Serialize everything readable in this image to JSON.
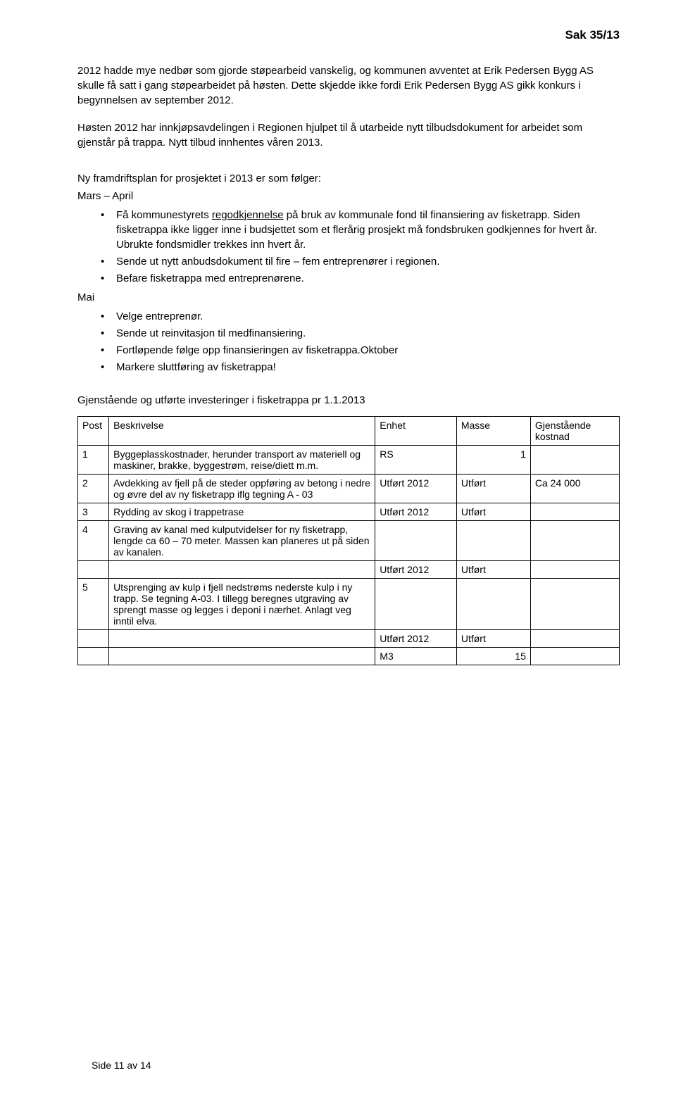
{
  "header": {
    "sak": "Sak 35/13"
  },
  "para1": "2012 hadde mye nedbør som gjorde støpearbeid vanskelig, og kommunen avventet at Erik Pedersen Bygg AS skulle få satt i gang støpearbeidet på høsten. Dette skjedde ikke fordi Erik Pedersen Bygg AS gikk konkurs i begynnelsen av september 2012.",
  "para2": "Høsten 2012 har innkjøpsavdelingen i Regionen hjulpet til å utarbeide nytt tilbudsdokument for arbeidet som gjenstår på trappa. Nytt tilbud innhentes våren 2013.",
  "plan_intro": "Ny framdriftsplan for prosjektet i 2013 er som følger:",
  "period1": "Mars – April",
  "bullets1": {
    "b1_pre": "Få kommunestyrets ",
    "b1_underlined": "regodkjennelse",
    "b1_post": " på bruk av kommunale fond til finansiering av fisketrapp. Siden fisketrappa ikke ligger inne i budsjettet som et flerårig prosjekt må fondsbruken godkjennes for hvert år. Ubrukte fondsmidler trekkes inn hvert år.",
    "b2": "Sende ut nytt anbudsdokument til fire – fem entreprenører i regionen.",
    "b3": "Befare fisketrappa med entreprenørene."
  },
  "period2": "Mai",
  "bullets2": {
    "b1": "Velge entreprenør.",
    "b2": "Sende ut reinvitasjon til medfinansiering.",
    "b3": "Fortløpende følge opp finansieringen av fisketrappa.Oktober",
    "b4": "Markere sluttføring av fisketrappa!"
  },
  "table_heading": "Gjenstående og utførte investeringer i fisketrappa pr 1.1.2013",
  "columns": {
    "post": "Post",
    "beskrivelse": "Beskrivelse",
    "enhet": "Enhet",
    "masse": "Masse",
    "kostnad": "Gjenstående kostnad"
  },
  "rows": {
    "r1": {
      "post": "1",
      "desc": "Byggeplasskostnader, herunder transport av materiell og maskiner, brakke, byggestrøm, reise/diett m.m.",
      "enhet": "RS",
      "masse": "1",
      "kost": ""
    },
    "r2": {
      "post": "2",
      "desc": "Avdekking av fjell på de steder oppføring av betong i nedre og øvre del av ny fisketrapp iflg tegning A - 03",
      "enhet": "Utført 2012",
      "masse": "Utført",
      "kost": "Ca 24 000"
    },
    "r3": {
      "post": "3",
      "desc": "Rydding av skog i trappetrase",
      "enhet": "Utført 2012",
      "masse": "Utført",
      "kost": ""
    },
    "r4": {
      "post": "4",
      "desc": "Graving av kanal med kulputvidelser for ny fisketrapp, lengde ca 60 – 70 meter. Massen kan planeres ut på siden av kanalen.",
      "enhet": "",
      "masse": "",
      "kost": ""
    },
    "r4b": {
      "post": "",
      "desc": "",
      "enhet": "Utført 2012",
      "masse": "Utført",
      "kost": ""
    },
    "r5": {
      "post": "5",
      "desc": "Utsprenging av kulp i fjell nedstrøms nederste kulp i ny trapp. Se tegning A-03. I tillegg beregnes utgraving av sprengt masse og legges i deponi i nærhet. Anlagt veg inntil elva.",
      "enhet": "",
      "masse": "",
      "kost": ""
    },
    "r5b": {
      "post": "",
      "desc": "",
      "enhet": "Utført 2012",
      "masse": "Utført",
      "kost": ""
    },
    "r5c": {
      "post": "",
      "desc": "",
      "enhet": "M3",
      "masse": "15",
      "kost": ""
    }
  },
  "footer": "Side 11 av 14"
}
